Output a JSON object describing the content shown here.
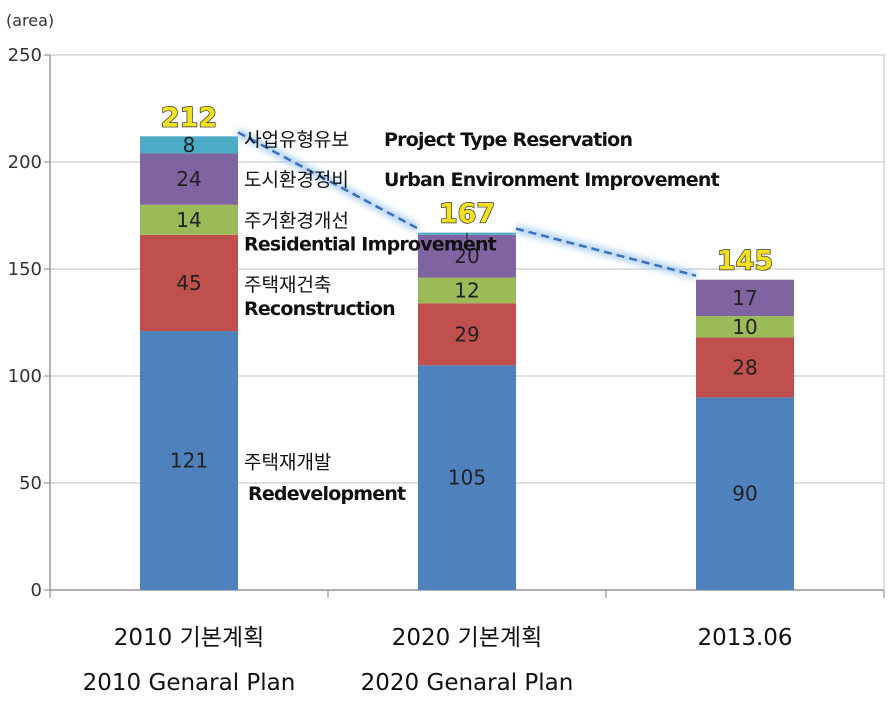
{
  "chart_data": {
    "type": "bar",
    "stacked": true,
    "unit_label": "(area)",
    "ylim": [
      0,
      250
    ],
    "yticks": [
      0,
      50,
      100,
      150,
      200,
      250
    ],
    "categories": [
      {
        "line1": "2010 기본계획",
        "line2": "2010 Genaral Plan"
      },
      {
        "line1": "2020 기본계획",
        "line2": "2020 Genaral Plan"
      },
      {
        "line1": "2013.06",
        "line2": ""
      }
    ],
    "series": [
      {
        "name_kr": "주택재개발",
        "name_en": "Redevelopment",
        "color": "#4f81bd",
        "values": [
          121,
          105,
          90
        ],
        "labels": [
          "121",
          "105",
          "90"
        ]
      },
      {
        "name_kr": "주택재건축",
        "name_en": "Reconstruction",
        "color": "#c0504d",
        "values": [
          45,
          29,
          28
        ],
        "labels": [
          "45",
          "29",
          "28"
        ]
      },
      {
        "name_kr": "주거환경개선",
        "name_en": "Residential Improvement",
        "color": "#9bbb59",
        "values": [
          14,
          12,
          10
        ],
        "labels": [
          "14",
          "12",
          "10"
        ]
      },
      {
        "name_kr": "도시환경정비",
        "name_en": "Urban Environment Improvement",
        "color": "#8064a2",
        "values": [
          24,
          20,
          17
        ],
        "labels": [
          "24",
          "20",
          "17"
        ]
      },
      {
        "name_kr": "사업유형유보",
        "name_en": "Project Type Reservation",
        "color": "#4bacc6",
        "values": [
          8,
          1,
          0
        ],
        "labels": [
          "8",
          "",
          ""
        ]
      }
    ],
    "totals": [
      "212",
      "167",
      "145"
    ]
  }
}
